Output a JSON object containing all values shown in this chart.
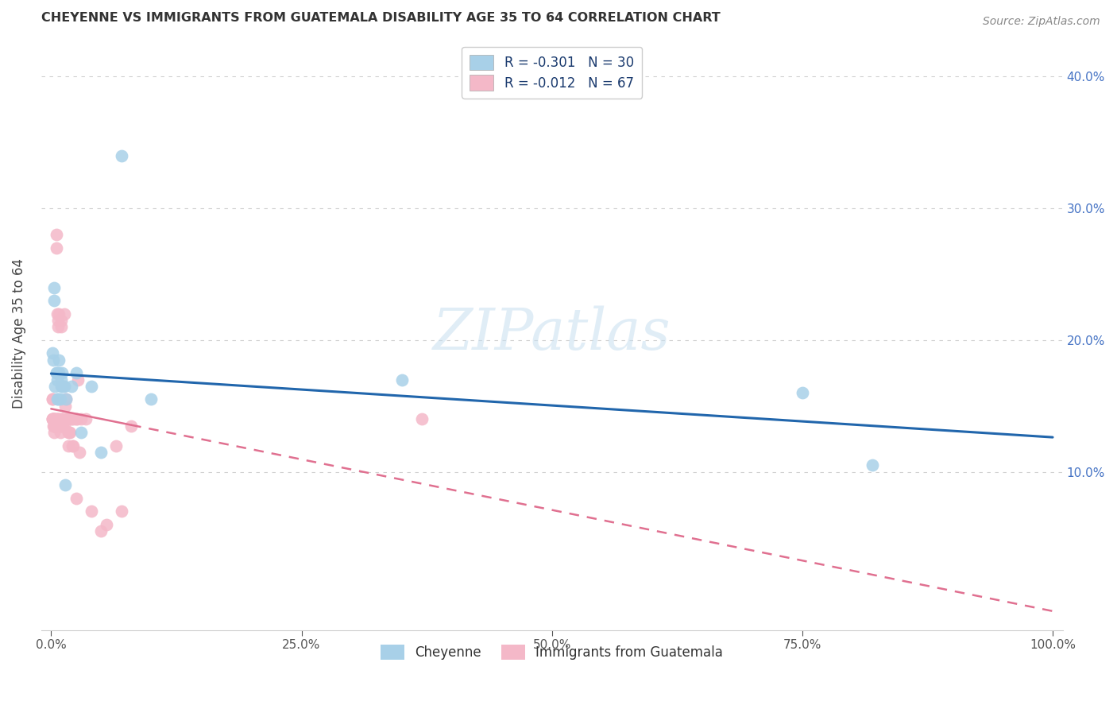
{
  "title": "CHEYENNE VS IMMIGRANTS FROM GUATEMALA DISABILITY AGE 35 TO 64 CORRELATION CHART",
  "source": "Source: ZipAtlas.com",
  "ylabel": "Disability Age 35 to 64",
  "legend_label1": "Cheyenne",
  "legend_label2": "Immigrants from Guatemala",
  "r1": "-0.301",
  "n1": "30",
  "r2": "-0.012",
  "n2": "67",
  "color1": "#a8d0e8",
  "color2": "#f4b8c8",
  "line_color1": "#2166ac",
  "line_color2": "#e07090",
  "background_color": "#ffffff",
  "grid_color": "#d0d0d0",
  "xlim": [
    -0.01,
    1.01
  ],
  "ylim": [
    -0.02,
    0.43
  ],
  "tick_color": "#4472c4",
  "cheyenne_x": [
    0.001,
    0.002,
    0.003,
    0.003,
    0.004,
    0.005,
    0.005,
    0.006,
    0.006,
    0.007,
    0.008,
    0.008,
    0.009,
    0.01,
    0.01,
    0.011,
    0.012,
    0.013,
    0.014,
    0.015,
    0.02,
    0.025,
    0.03,
    0.04,
    0.05,
    0.07,
    0.35,
    0.75,
    0.82,
    0.1
  ],
  "cheyenne_y": [
    0.19,
    0.185,
    0.23,
    0.24,
    0.165,
    0.175,
    0.175,
    0.155,
    0.17,
    0.155,
    0.185,
    0.175,
    0.155,
    0.165,
    0.17,
    0.175,
    0.165,
    0.165,
    0.09,
    0.155,
    0.165,
    0.175,
    0.13,
    0.165,
    0.115,
    0.34,
    0.17,
    0.16,
    0.105,
    0.155
  ],
  "guatemala_x": [
    0.001,
    0.001,
    0.001,
    0.001,
    0.001,
    0.002,
    0.002,
    0.002,
    0.002,
    0.003,
    0.003,
    0.003,
    0.003,
    0.004,
    0.004,
    0.004,
    0.005,
    0.005,
    0.005,
    0.005,
    0.006,
    0.006,
    0.006,
    0.007,
    0.007,
    0.008,
    0.008,
    0.008,
    0.009,
    0.009,
    0.01,
    0.01,
    0.01,
    0.01,
    0.011,
    0.011,
    0.012,
    0.012,
    0.013,
    0.013,
    0.014,
    0.015,
    0.015,
    0.016,
    0.017,
    0.017,
    0.018,
    0.019,
    0.02,
    0.02,
    0.021,
    0.022,
    0.023,
    0.025,
    0.025,
    0.026,
    0.027,
    0.028,
    0.03,
    0.035,
    0.04,
    0.05,
    0.055,
    0.065,
    0.07,
    0.08,
    0.37
  ],
  "guatemala_y": [
    0.14,
    0.14,
    0.14,
    0.155,
    0.155,
    0.14,
    0.135,
    0.14,
    0.14,
    0.14,
    0.135,
    0.13,
    0.14,
    0.135,
    0.135,
    0.14,
    0.14,
    0.14,
    0.28,
    0.27,
    0.14,
    0.135,
    0.22,
    0.21,
    0.215,
    0.14,
    0.14,
    0.22,
    0.13,
    0.135,
    0.135,
    0.14,
    0.21,
    0.215,
    0.14,
    0.135,
    0.135,
    0.14,
    0.135,
    0.22,
    0.15,
    0.14,
    0.155,
    0.14,
    0.13,
    0.12,
    0.13,
    0.13,
    0.14,
    0.14,
    0.12,
    0.12,
    0.14,
    0.14,
    0.08,
    0.14,
    0.17,
    0.115,
    0.14,
    0.14,
    0.07,
    0.055,
    0.06,
    0.12,
    0.07,
    0.135,
    0.14
  ],
  "x_ticks": [
    0.0,
    0.25,
    0.5,
    0.75,
    1.0
  ],
  "x_tick_labels": [
    "0.0%",
    "25.0%",
    "50.0%",
    "75.0%",
    "100.0%"
  ],
  "y_ticks": [
    0.1,
    0.2,
    0.3,
    0.4
  ],
  "y_tick_labels": [
    "10.0%",
    "20.0%",
    "30.0%",
    "40.0%"
  ]
}
